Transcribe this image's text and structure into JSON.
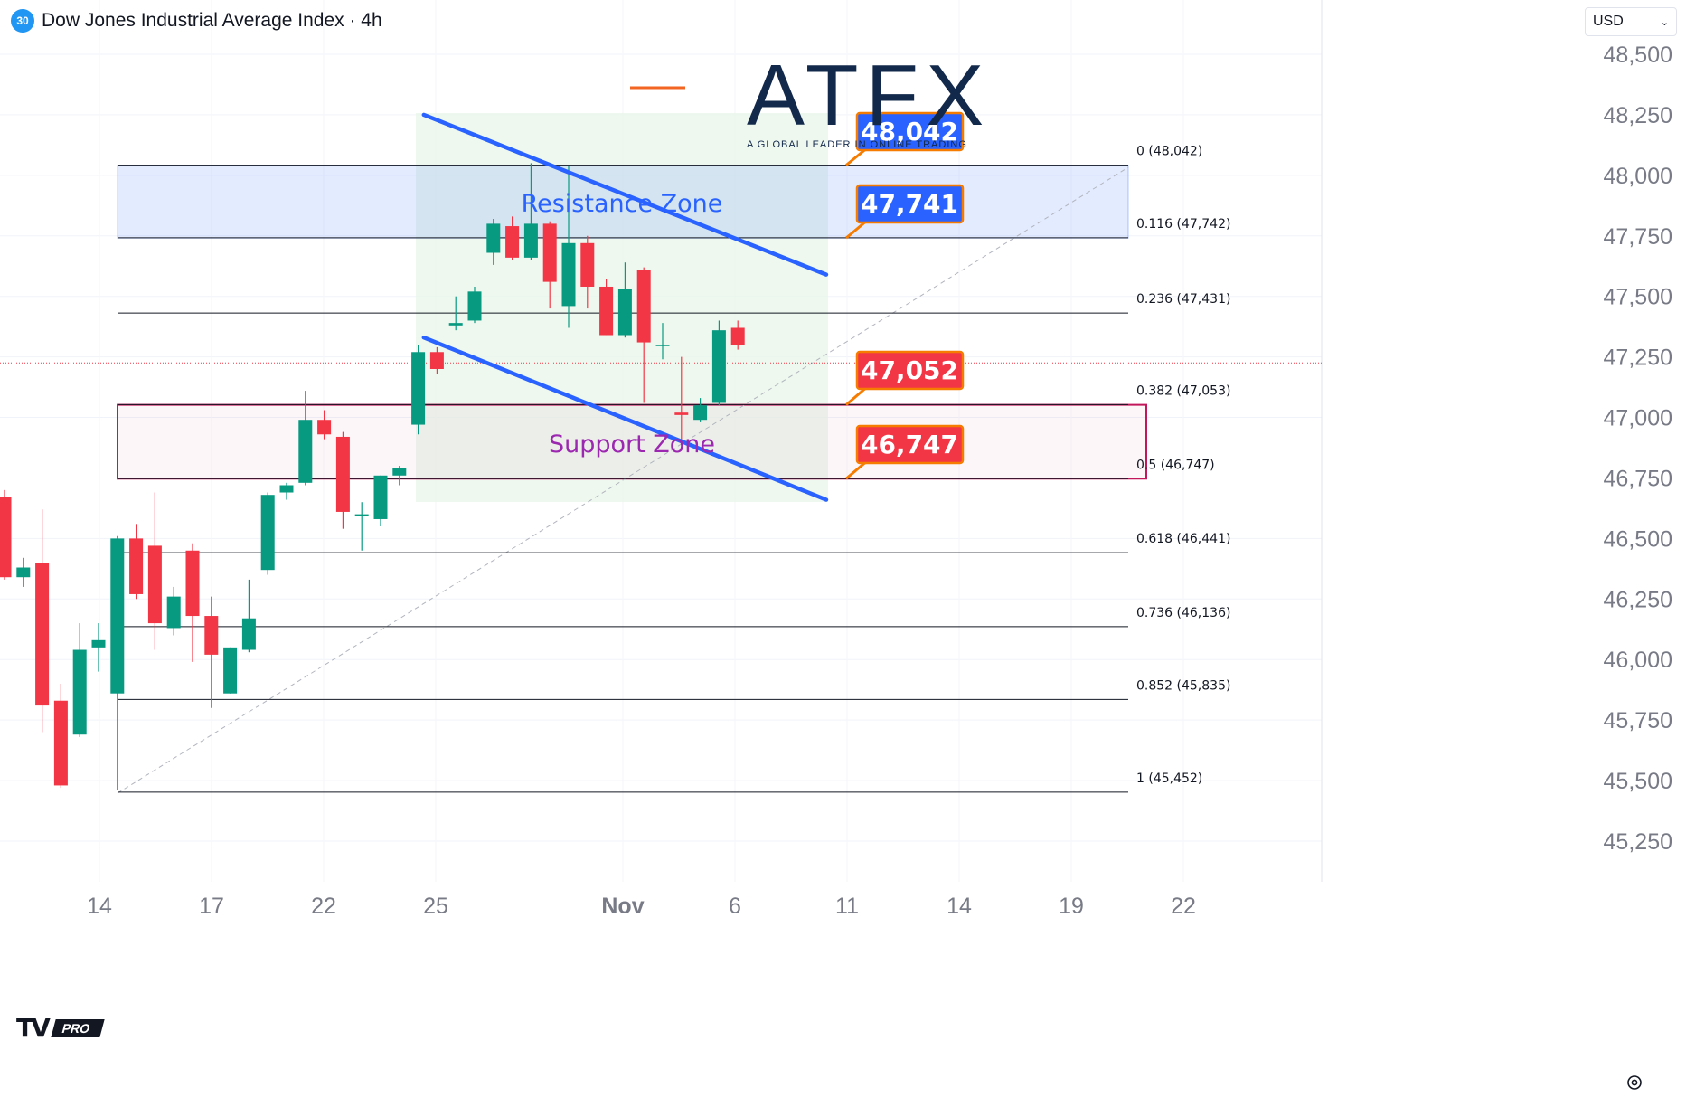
{
  "header": {
    "badge": "30",
    "title": "Dow Jones Industrial Average Index · 4h",
    "currency": "USD"
  },
  "logo": {
    "text": "ATFX",
    "tagline": "A GLOBAL LEADER IN ONLINE TRADING"
  },
  "platform_badge": "PRO",
  "chart_data": {
    "type": "candlestick",
    "interval": "4h",
    "instrument": "Dow Jones Industrial Average Index",
    "x_axis": {
      "tick_labels": [
        "14",
        "17",
        "22",
        "25",
        "Nov",
        "6",
        "11",
        "14",
        "19",
        "22"
      ]
    },
    "y_axis": {
      "position": "right",
      "tick_labels": [
        "48,500",
        "48,250",
        "48,000",
        "47,750",
        "47,500",
        "47,250",
        "47,000",
        "46,750",
        "46,500",
        "46,250",
        "46,000",
        "45,750",
        "45,500",
        "45,250"
      ],
      "range": [
        45200,
        48600
      ]
    },
    "candles": [
      {
        "open": 46670,
        "high": 46700,
        "low": 46330,
        "close": 46340
      },
      {
        "open": 46340,
        "high": 46420,
        "low": 46300,
        "close": 46380
      },
      {
        "open": 46400,
        "high": 46620,
        "low": 45700,
        "close": 45810
      },
      {
        "open": 45830,
        "high": 45900,
        "low": 45470,
        "close": 45480
      },
      {
        "open": 45690,
        "high": 46150,
        "low": 45680,
        "close": 46040
      },
      {
        "open": 46050,
        "high": 46150,
        "low": 45950,
        "close": 46080
      },
      {
        "open": 45860,
        "high": 46510,
        "low": 45460,
        "close": 46500
      },
      {
        "open": 46500,
        "high": 46560,
        "low": 46250,
        "close": 46270
      },
      {
        "open": 46470,
        "high": 46690,
        "low": 46040,
        "close": 46150
      },
      {
        "open": 46130,
        "high": 46300,
        "low": 46100,
        "close": 46260
      },
      {
        "open": 46450,
        "high": 46480,
        "low": 45990,
        "close": 46180
      },
      {
        "open": 46180,
        "high": 46260,
        "low": 45800,
        "close": 46020
      },
      {
        "open": 45860,
        "high": 46050,
        "low": 45860,
        "close": 46050
      },
      {
        "open": 46040,
        "high": 46330,
        "low": 46030,
        "close": 46170
      },
      {
        "open": 46370,
        "high": 46690,
        "low": 46350,
        "close": 46680
      },
      {
        "open": 46690,
        "high": 46730,
        "low": 46660,
        "close": 46720
      },
      {
        "open": 46730,
        "high": 47110,
        "low": 46720,
        "close": 46990
      },
      {
        "open": 46990,
        "high": 47030,
        "low": 46910,
        "close": 46930
      },
      {
        "open": 46920,
        "high": 46940,
        "low": 46540,
        "close": 46610
      },
      {
        "open": 46600,
        "high": 46650,
        "low": 46450,
        "close": 46600
      },
      {
        "open": 46580,
        "high": 46760,
        "low": 46550,
        "close": 46760
      },
      {
        "open": 46760,
        "high": 46800,
        "low": 46720,
        "close": 46790
      },
      {
        "open": 46970,
        "high": 47300,
        "low": 46930,
        "close": 47270
      },
      {
        "open": 47270,
        "high": 47290,
        "low": 47180,
        "close": 47200
      },
      {
        "open": 47380,
        "high": 47500,
        "low": 47360,
        "close": 47390
      },
      {
        "open": 47400,
        "high": 47540,
        "low": 47390,
        "close": 47520
      },
      {
        "open": 47680,
        "high": 47820,
        "low": 47630,
        "close": 47800
      },
      {
        "open": 47790,
        "high": 47830,
        "low": 47650,
        "close": 47660
      },
      {
        "open": 47660,
        "high": 48050,
        "low": 47650,
        "close": 47800
      },
      {
        "open": 47800,
        "high": 47810,
        "low": 47450,
        "close": 47560
      },
      {
        "open": 47460,
        "high": 48040,
        "low": 47370,
        "close": 47720
      },
      {
        "open": 47720,
        "high": 47750,
        "low": 47450,
        "close": 47540
      },
      {
        "open": 47540,
        "high": 47570,
        "low": 47340,
        "close": 47340
      },
      {
        "open": 47340,
        "high": 47640,
        "low": 47330,
        "close": 47530
      },
      {
        "open": 47610,
        "high": 47620,
        "low": 47060,
        "close": 47310
      },
      {
        "open": 47300,
        "high": 47390,
        "low": 47240,
        "close": 47300
      },
      {
        "open": 47020,
        "high": 47250,
        "low": 46900,
        "close": 47010
      },
      {
        "open": 46990,
        "high": 47080,
        "low": 46980,
        "close": 47050
      },
      {
        "open": 47060,
        "high": 47400,
        "low": 47050,
        "close": 47360
      },
      {
        "open": 47370,
        "high": 47400,
        "low": 47280,
        "close": 47300
      }
    ],
    "fibonacci": [
      {
        "label": "0 (48,042)",
        "value": 48042
      },
      {
        "label": "0.116 (47,742)",
        "value": 47742
      },
      {
        "label": "0.236 (47,431)",
        "value": 47431
      },
      {
        "label": "0.382 (47,053)",
        "value": 47053
      },
      {
        "label": "0.5 (46,747)",
        "value": 46747
      },
      {
        "label": "0.618 (46,441)",
        "value": 46441
      },
      {
        "label": "0.736 (46,136)",
        "value": 46136
      },
      {
        "label": "0.852 (45,835)",
        "value": 45835
      },
      {
        "label": "1 (45,452)",
        "value": 45452
      }
    ],
    "zones": [
      {
        "name": "Resistance Zone",
        "from": 47741,
        "to": 48042,
        "color": "#2962ff"
      },
      {
        "name": "Support Zone",
        "from": 46747,
        "to": 47052,
        "color": "#c2185b"
      }
    ],
    "callouts": [
      {
        "text": "48,042",
        "value": 48042,
        "color": "#2962ff"
      },
      {
        "text": "47,741",
        "value": 47741,
        "color": "#2962ff"
      },
      {
        "text": "47,052",
        "value": 47052,
        "color": "#f23645"
      },
      {
        "text": "46,747",
        "value": 46747,
        "color": "#f23645"
      }
    ],
    "channel": {
      "upper": [
        {
          "bar": 22.3,
          "value": 48250
        },
        {
          "bar": 43.7,
          "value": 47590
        }
      ],
      "lower": [
        {
          "bar": 22.3,
          "value": 47330
        },
        {
          "bar": 43.7,
          "value": 46660
        }
      ]
    },
    "current_price": 47300,
    "colors": {
      "up": "#089981",
      "down": "#f23645",
      "channel": "#2962ff",
      "fib": "#131722",
      "shade": "#e8f5e9"
    }
  }
}
